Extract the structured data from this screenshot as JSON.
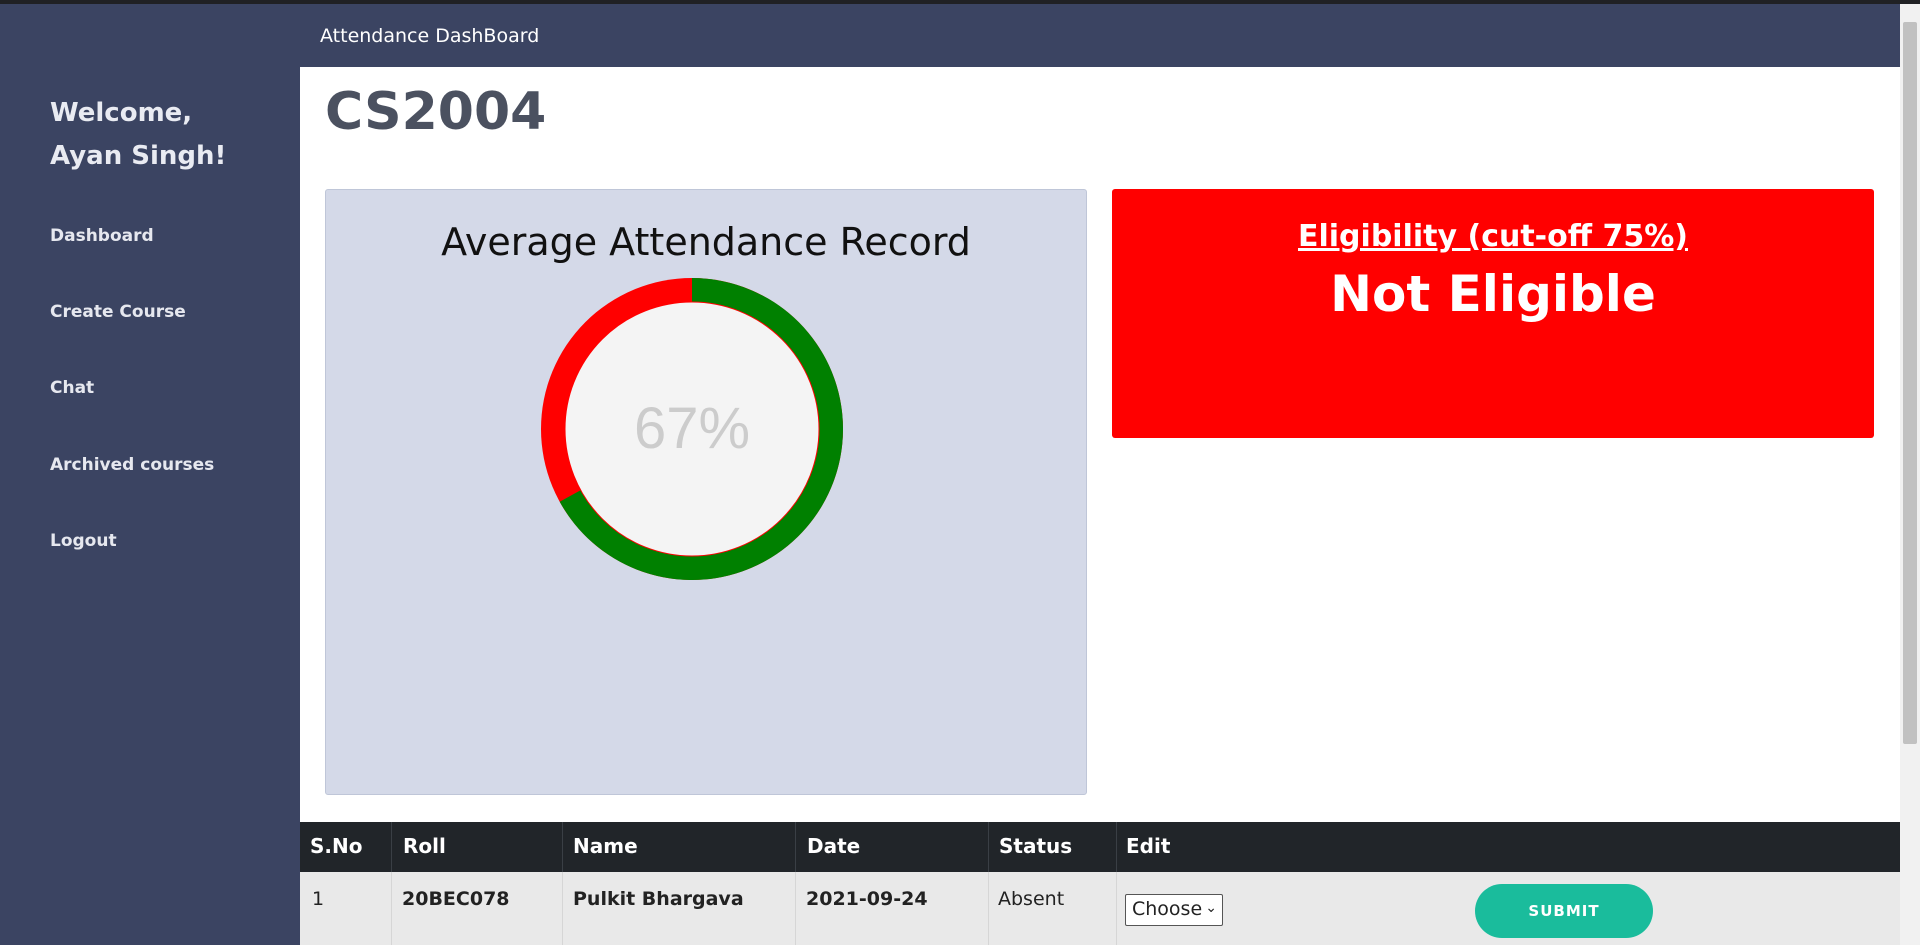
{
  "app": {
    "title": "Attendance DashBoard"
  },
  "sidebar": {
    "welcome_line1": "Welcome,",
    "welcome_line2": "Ayan Singh!",
    "items": [
      {
        "label": "Dashboard"
      },
      {
        "label": "Create Course"
      },
      {
        "label": "Chat"
      },
      {
        "label": "Archived courses"
      },
      {
        "label": "Logout"
      }
    ]
  },
  "course": {
    "code": "CS2004"
  },
  "attendance_card": {
    "title": "Average Attendance Record",
    "percent_label": "67%",
    "present_fraction": 0.67,
    "present_color": "#008000",
    "absent_color": "#ff0000",
    "center_color": "#f4f4f4",
    "label_color": "#cccccc"
  },
  "eligibility": {
    "label": "Eligibility (cut-off 75%)",
    "status": "Not Eligible",
    "color": "#ff0000"
  },
  "table": {
    "headers": [
      "S.No",
      "Roll",
      "Name",
      "Date",
      "Status",
      "Edit"
    ],
    "rows": [
      {
        "sno": "1",
        "roll": "20BEC078",
        "name": "Pulkit Bhargava",
        "date": "2021-09-24",
        "status": "Absent",
        "edit_selected": "Choose",
        "submit_label": "SUBMIT"
      }
    ]
  }
}
